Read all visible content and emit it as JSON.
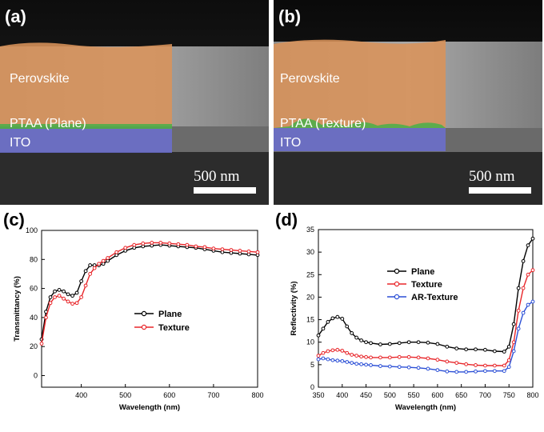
{
  "panels": {
    "a": {
      "label": "(a)",
      "layers": {
        "perovskite": "Perovskite",
        "ptaa": "PTAA (Plane)",
        "ito": "ITO"
      },
      "scale_bar": "500 nm"
    },
    "b": {
      "label": "(b)",
      "layers": {
        "perovskite": "Perovskite",
        "ptaa": "PTAA (Texture)",
        "ito": "ITO"
      },
      "scale_bar": "500 nm"
    },
    "c": {
      "label": "(c)"
    },
    "d": {
      "label": "(d)"
    }
  },
  "colors": {
    "perovskite": "#d9935a",
    "ptaa": "#4fae4a",
    "ito": "#6b6fd0",
    "plane": "#000000",
    "texture": "#e8262a",
    "ar_texture": "#2b4fd6"
  },
  "chart_data": [
    {
      "type": "line",
      "panel": "c",
      "xlabel": "Wavelength (nm)",
      "ylabel": "Transmittancy (%)",
      "xlim": [
        310,
        800
      ],
      "ylim": [
        -8,
        100
      ],
      "xticks": [
        400,
        500,
        600,
        700,
        800
      ],
      "yticks": [
        0,
        20,
        40,
        60,
        80,
        100
      ],
      "legend": "center-right",
      "series": [
        {
          "name": "Plane",
          "x": [
            310,
            320,
            330,
            340,
            350,
            360,
            370,
            380,
            390,
            400,
            410,
            420,
            430,
            440,
            450,
            460,
            480,
            500,
            520,
            540,
            560,
            580,
            600,
            620,
            640,
            660,
            680,
            700,
            720,
            740,
            760,
            780,
            800
          ],
          "y": [
            25,
            44,
            54,
            58,
            59,
            58,
            56,
            55,
            57,
            65,
            72,
            76,
            76,
            76,
            77,
            79,
            83,
            86,
            88,
            89,
            89.5,
            90,
            89.5,
            89,
            88.5,
            88,
            87,
            86,
            85,
            84.5,
            84,
            83.5,
            83
          ]
        },
        {
          "name": "Texture",
          "x": [
            310,
            320,
            330,
            340,
            350,
            360,
            370,
            380,
            390,
            400,
            410,
            420,
            430,
            440,
            450,
            460,
            480,
            500,
            520,
            540,
            560,
            580,
            600,
            620,
            640,
            660,
            680,
            700,
            720,
            740,
            760,
            780,
            800
          ],
          "y": [
            22,
            40,
            50,
            54,
            55,
            53,
            51,
            49.5,
            50,
            54,
            62,
            70,
            74,
            77,
            79,
            81,
            85,
            88,
            90,
            91,
            91.5,
            91.5,
            91,
            90.5,
            90,
            89,
            88.5,
            87.5,
            87,
            86.5,
            86,
            85.5,
            85
          ]
        }
      ]
    },
    {
      "type": "line",
      "panel": "d",
      "xlabel": "Wavelength (nm)",
      "ylabel": "Reflectivity (%)",
      "xlim": [
        350,
        800
      ],
      "ylim": [
        0,
        35
      ],
      "xticks": [
        350,
        400,
        450,
        500,
        550,
        600,
        650,
        700,
        750,
        800
      ],
      "yticks": [
        0,
        5,
        10,
        15,
        20,
        25,
        30,
        35
      ],
      "legend": "center",
      "series": [
        {
          "name": "Plane",
          "x": [
            350,
            360,
            370,
            380,
            390,
            400,
            410,
            420,
            430,
            440,
            450,
            460,
            480,
            500,
            520,
            540,
            560,
            580,
            600,
            620,
            640,
            660,
            680,
            700,
            720,
            740,
            750,
            760,
            770,
            780,
            790,
            800
          ],
          "y": [
            11.5,
            13,
            14.5,
            15.3,
            15.6,
            15.2,
            13.5,
            12,
            11,
            10.4,
            10,
            9.8,
            9.5,
            9.6,
            9.8,
            10,
            10,
            9.9,
            9.6,
            9,
            8.6,
            8.4,
            8.4,
            8.3,
            8,
            7.9,
            9,
            14,
            22,
            28,
            31.5,
            33
          ]
        },
        {
          "name": "Texture",
          "x": [
            350,
            360,
            370,
            380,
            390,
            400,
            410,
            420,
            430,
            440,
            450,
            460,
            480,
            500,
            520,
            540,
            560,
            580,
            600,
            620,
            640,
            660,
            680,
            700,
            720,
            740,
            750,
            760,
            770,
            780,
            790,
            800
          ],
          "y": [
            7,
            7.6,
            8,
            8.2,
            8.3,
            8.1,
            7.6,
            7.2,
            7,
            6.8,
            6.7,
            6.6,
            6.6,
            6.6,
            6.7,
            6.7,
            6.6,
            6.4,
            6.1,
            5.7,
            5.4,
            5.1,
            4.9,
            4.8,
            4.8,
            4.8,
            6,
            10,
            17,
            22,
            25,
            26
          ]
        },
        {
          "name": "AR-Texture",
          "x": [
            350,
            360,
            370,
            380,
            390,
            400,
            410,
            420,
            430,
            440,
            450,
            460,
            480,
            500,
            520,
            540,
            560,
            580,
            600,
            620,
            640,
            660,
            680,
            700,
            720,
            740,
            750,
            760,
            770,
            780,
            790,
            800
          ],
          "y": [
            6.2,
            6.4,
            6.2,
            6,
            5.9,
            5.8,
            5.6,
            5.4,
            5.2,
            5.1,
            5,
            4.9,
            4.7,
            4.6,
            4.5,
            4.4,
            4.3,
            4.1,
            3.8,
            3.5,
            3.4,
            3.4,
            3.5,
            3.6,
            3.6,
            3.6,
            4.5,
            8,
            13,
            16.5,
            18.3,
            19
          ]
        }
      ]
    }
  ]
}
